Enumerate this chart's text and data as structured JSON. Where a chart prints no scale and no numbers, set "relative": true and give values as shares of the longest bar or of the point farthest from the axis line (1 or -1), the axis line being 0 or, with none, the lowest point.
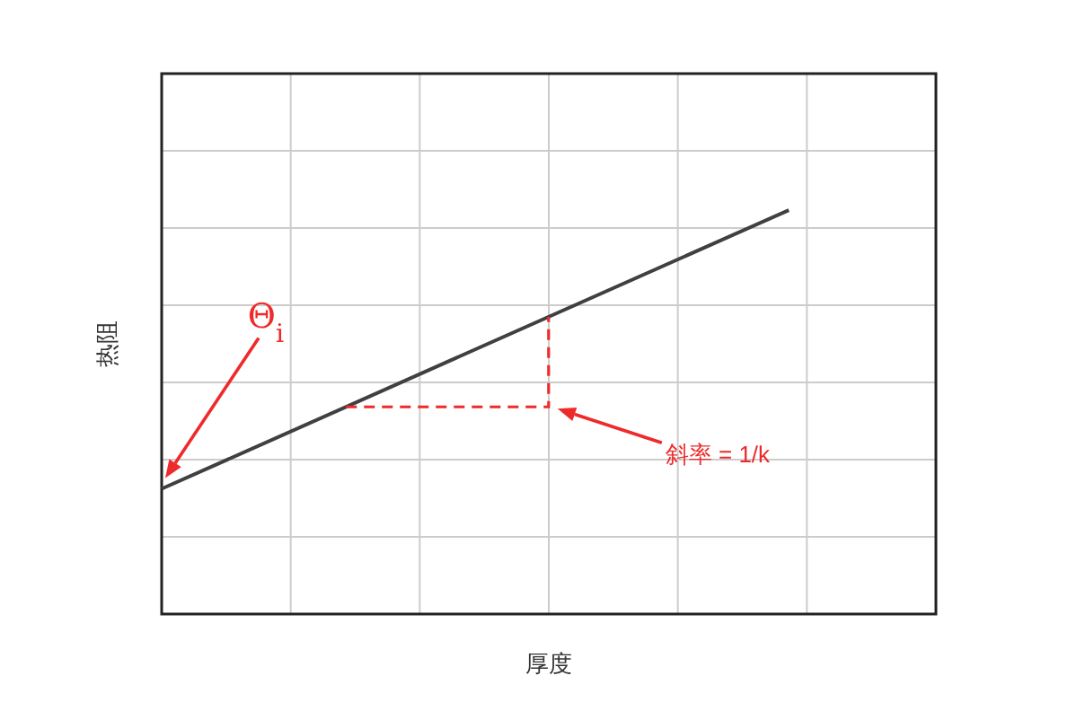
{
  "chart_data": {
    "type": "line",
    "xlabel": "厚度",
    "ylabel": "热阻",
    "relative": true,
    "grid": true,
    "categories": [
      null,
      null
    ],
    "series": [
      {
        "color": "#404040",
        "values": [
          0.31,
          1
        ]
      }
    ],
    "annotations": [
      "Θ$_{i}$",
      "斜率 = 1/k"
    ]
  }
}
